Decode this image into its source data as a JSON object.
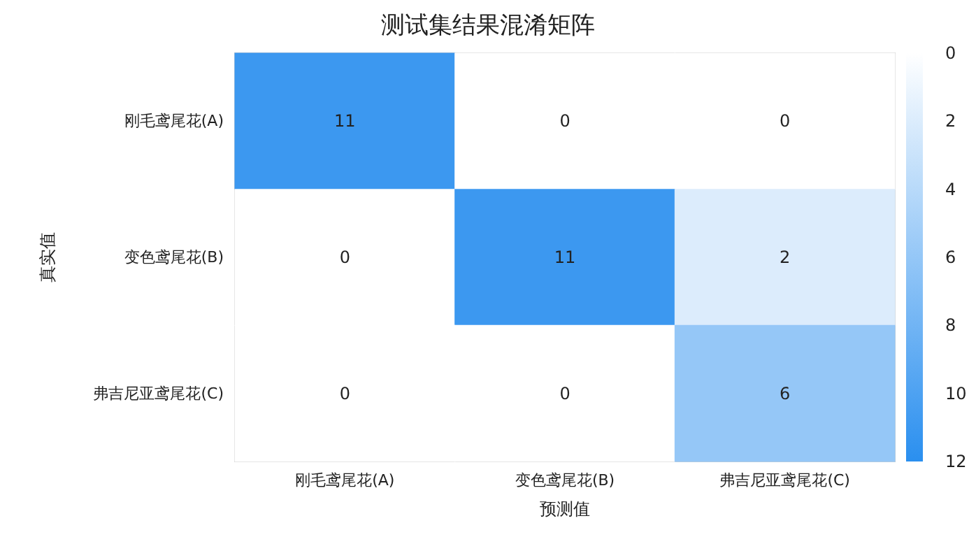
{
  "chart_data": {
    "type": "heatmap",
    "title": "测试集结果混淆矩阵",
    "xlabel": "预测值",
    "ylabel": "真实值",
    "categories": [
      "刚毛鸢尾花(A)",
      "变色鸢尾花(B)",
      "弗吉尼亚鸢尾花(C)"
    ],
    "y_categories": [
      "刚毛鸢尾花(A)",
      "变色鸢尾花(B)",
      "弗吉尼亚鸢尾花(C)"
    ],
    "cells": [
      [
        11,
        0,
        0
      ],
      [
        0,
        11,
        2
      ],
      [
        0,
        0,
        6
      ]
    ],
    "data_labels": true,
    "clim": [
      0,
      12
    ],
    "cticks": [
      0,
      2,
      4,
      6,
      8,
      10,
      12
    ],
    "colors": [
      "#ffffff",
      "#2a8fef"
    ]
  }
}
